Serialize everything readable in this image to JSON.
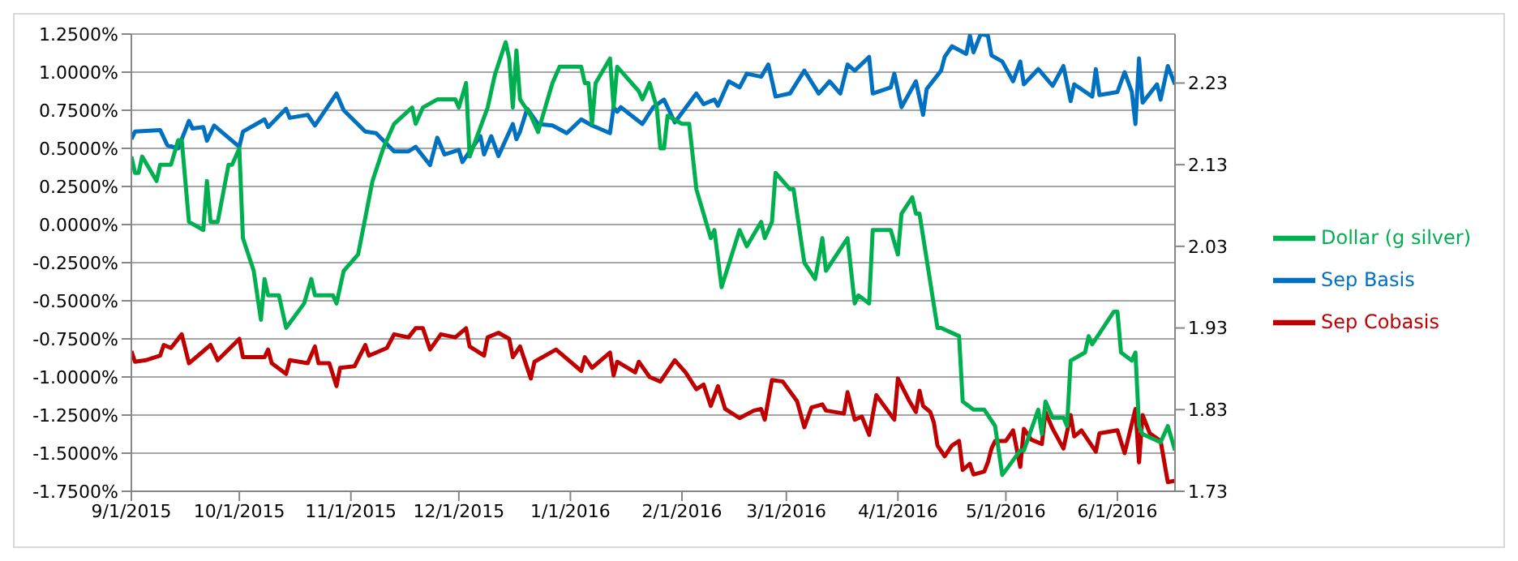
{
  "chart_data": {
    "type": "line",
    "legend": "right",
    "grid": "y",
    "line_style": "solid",
    "marker": "none",
    "xlim": [
      "2015-09-01",
      "2016-06-17"
    ],
    "xticks": [
      {
        "value": "2015-09-01",
        "label": "9/1/2015"
      },
      {
        "value": "2015-10-01",
        "label": "10/1/2015"
      },
      {
        "value": "2015-11-01",
        "label": "11/1/2015"
      },
      {
        "value": "2015-12-01",
        "label": "12/1/2015"
      },
      {
        "value": "2016-01-01",
        "label": "1/1/2016"
      },
      {
        "value": "2016-02-01",
        "label": "2/1/2016"
      },
      {
        "value": "2016-03-01",
        "label": "3/1/2016"
      },
      {
        "value": "2016-04-01",
        "label": "4/1/2016"
      },
      {
        "value": "2016-05-01",
        "label": "5/1/2016"
      },
      {
        "value": "2016-06-01",
        "label": "6/1/2016"
      }
    ],
    "ylim": [
      -1.75,
      1.25
    ],
    "yticks": [
      {
        "value": 1.25,
        "label": "1.2500%"
      },
      {
        "value": 1,
        "label": "1.0000%"
      },
      {
        "value": 0.75,
        "label": "0.7500%"
      },
      {
        "value": 0.5,
        "label": "0.5000%"
      },
      {
        "value": 0.25,
        "label": "0.2500%"
      },
      {
        "value": 0,
        "label": "0.0000%"
      },
      {
        "value": -0.25,
        "label": "-0.2500%"
      },
      {
        "value": -0.5,
        "label": "-0.5000%"
      },
      {
        "value": -0.75,
        "label": "-0.7500%"
      },
      {
        "value": -1,
        "label": "-1.0000%"
      },
      {
        "value": -1.25,
        "label": "-1.2500%"
      },
      {
        "value": -1.5,
        "label": "-1.5000%"
      },
      {
        "value": -1.75,
        "label": "-1.7500%"
      }
    ],
    "y2lim": [
      1.73,
      2.29
    ],
    "y2ticks": [
      1.73,
      1.83,
      1.93,
      2.03,
      2.13,
      2.23
    ],
    "series": [
      {
        "name": "Sep Basis",
        "color": "#0070c0",
        "x": [
          "2015-09-01",
          "2015-09-02",
          "2015-09-09",
          "2015-09-11",
          "2015-09-14",
          "2015-09-17",
          "2015-09-18",
          "2015-09-21",
          "2015-09-22",
          "2015-09-24",
          "2015-10-01",
          "2015-10-02",
          "2015-10-08",
          "2015-10-09",
          "2015-10-14",
          "2015-10-15",
          "2015-10-20",
          "2015-10-22",
          "2015-10-28",
          "2015-10-30",
          "2015-11-05",
          "2015-11-08",
          "2015-11-13",
          "2015-11-17",
          "2015-11-19",
          "2015-11-23",
          "2015-11-25",
          "2015-11-27",
          "2015-12-01",
          "2015-12-02",
          "2015-12-04",
          "2015-12-07",
          "2015-12-08",
          "2015-12-10",
          "2015-12-12",
          "2015-12-16",
          "2015-12-17",
          "2015-12-18",
          "2015-12-20",
          "2015-12-23",
          "2015-12-27",
          "2015-12-31",
          "2016-01-04",
          "2016-01-07",
          "2016-01-12",
          "2016-01-13",
          "2016-01-14",
          "2016-01-15",
          "2016-01-21",
          "2016-01-24",
          "2016-01-27",
          "2016-01-30",
          "2016-02-05",
          "2016-02-07",
          "2016-02-10",
          "2016-02-11",
          "2016-02-14",
          "2016-02-17",
          "2016-02-19",
          "2016-02-23",
          "2016-02-25",
          "2016-02-27",
          "2016-03-02",
          "2016-03-06",
          "2016-03-10",
          "2016-03-13",
          "2016-03-16",
          "2016-03-18",
          "2016-03-20",
          "2016-03-24",
          "2016-03-25",
          "2016-03-30",
          "2016-03-31",
          "2016-04-02",
          "2016-04-06",
          "2016-04-08",
          "2016-04-09",
          "2016-04-13",
          "2016-04-14",
          "2016-04-16",
          "2016-04-20",
          "2016-04-21",
          "2016-04-22",
          "2016-04-24",
          "2016-04-26",
          "2016-04-27",
          "2016-04-30",
          "2016-05-03",
          "2016-05-05",
          "2016-05-06",
          "2016-05-10",
          "2016-05-14",
          "2016-05-17",
          "2016-05-19",
          "2016-05-20",
          "2016-05-25",
          "2016-05-26",
          "2016-05-27",
          "2016-06-01",
          "2016-06-03",
          "2016-06-05",
          "2016-06-06",
          "2016-06-07",
          "2016-06-08",
          "2016-06-12",
          "2016-06-13",
          "2016-06-15",
          "2016-06-17"
        ],
        "values": [
          0.56,
          0.61,
          0.62,
          0.52,
          0.5,
          0.68,
          0.63,
          0.64,
          0.55,
          0.65,
          0.51,
          0.61,
          0.69,
          0.64,
          0.76,
          0.7,
          0.72,
          0.65,
          0.86,
          0.75,
          0.61,
          0.6,
          0.48,
          0.48,
          0.51,
          0.39,
          0.57,
          0.46,
          0.49,
          0.41,
          0.48,
          0.58,
          0.46,
          0.58,
          0.45,
          0.66,
          0.56,
          0.61,
          0.76,
          0.66,
          0.65,
          0.6,
          0.69,
          0.65,
          0.6,
          0.77,
          0.74,
          0.77,
          0.66,
          0.77,
          0.82,
          0.67,
          0.86,
          0.79,
          0.82,
          0.78,
          0.94,
          0.9,
          0.99,
          0.97,
          1.05,
          0.84,
          0.86,
          1.01,
          0.86,
          0.94,
          0.86,
          1.05,
          1.01,
          1.1,
          0.86,
          0.9,
          0.99,
          0.77,
          0.94,
          0.72,
          0.89,
          1.01,
          1.1,
          1.17,
          1.12,
          1.24,
          1.13,
          1.25,
          1.24,
          1.11,
          1.07,
          0.94,
          1.07,
          0.92,
          1.02,
          0.91,
          1.04,
          0.81,
          0.92,
          0.84,
          1.02,
          0.85,
          0.87,
          1.0,
          0.87,
          0.66,
          1.09,
          0.8,
          0.92,
          0.82,
          1.04,
          0.92
        ]
      },
      {
        "name": "Sep Cobasis",
        "color": "#c00000",
        "x": [
          "2015-09-01",
          "2015-09-02",
          "2015-09-05",
          "2015-09-09",
          "2015-09-10",
          "2015-09-12",
          "2015-09-15",
          "2015-09-17",
          "2015-09-23",
          "2015-09-25",
          "2015-10-01",
          "2015-10-02",
          "2015-10-08",
          "2015-10-09",
          "2015-10-10",
          "2015-10-14",
          "2015-10-15",
          "2015-10-20",
          "2015-10-22",
          "2015-10-23",
          "2015-10-26",
          "2015-10-28",
          "2015-10-29",
          "2015-11-02",
          "2015-11-05",
          "2015-11-06",
          "2015-11-11",
          "2015-11-13",
          "2015-11-17",
          "2015-11-19",
          "2015-11-21",
          "2015-11-23",
          "2015-11-26",
          "2015-11-30",
          "2015-12-03",
          "2015-12-04",
          "2015-12-08",
          "2015-12-09",
          "2015-12-12",
          "2015-12-15",
          "2015-12-16",
          "2015-12-18",
          "2015-12-21",
          "2015-12-22",
          "2015-12-28",
          "2016-01-04",
          "2016-01-05",
          "2016-01-07",
          "2016-01-12",
          "2016-01-13",
          "2016-01-14",
          "2016-01-19",
          "2016-01-20",
          "2016-01-23",
          "2016-01-26",
          "2016-01-30",
          "2016-02-02",
          "2016-02-05",
          "2016-02-07",
          "2016-02-09",
          "2016-02-11",
          "2016-02-13",
          "2016-02-17",
          "2016-02-21",
          "2016-02-23",
          "2016-02-24",
          "2016-02-26",
          "2016-02-29",
          "2016-03-04",
          "2016-03-06",
          "2016-03-08",
          "2016-03-11",
          "2016-03-12",
          "2016-03-17",
          "2016-03-18",
          "2016-03-20",
          "2016-03-22",
          "2016-03-24",
          "2016-03-26",
          "2016-03-31",
          "2016-04-01",
          "2016-04-04",
          "2016-04-06",
          "2016-04-07",
          "2016-04-08",
          "2016-04-10",
          "2016-04-11",
          "2016-04-12",
          "2016-04-14",
          "2016-04-16",
          "2016-04-18",
          "2016-04-19",
          "2016-04-21",
          "2016-04-22",
          "2016-04-25",
          "2016-04-26",
          "2016-04-27",
          "2016-04-28",
          "2016-05-01",
          "2016-05-03",
          "2016-05-05",
          "2016-05-06",
          "2016-05-08",
          "2016-05-11",
          "2016-05-12",
          "2016-05-14",
          "2016-05-17",
          "2016-05-19",
          "2016-05-20",
          "2016-05-22",
          "2016-05-26",
          "2016-05-27",
          "2016-06-01",
          "2016-06-03",
          "2016-06-06",
          "2016-06-07",
          "2016-06-08",
          "2016-06-10",
          "2016-06-13",
          "2016-06-15",
          "2016-06-17"
        ],
        "values": [
          -0.83,
          -0.9,
          -0.89,
          -0.86,
          -0.79,
          -0.81,
          -0.72,
          -0.91,
          -0.79,
          -0.89,
          -0.75,
          -0.87,
          -0.87,
          -0.82,
          -0.91,
          -0.98,
          -0.89,
          -0.91,
          -0.8,
          -0.91,
          -0.91,
          -1.06,
          -0.94,
          -0.93,
          -0.79,
          -0.86,
          -0.81,
          -0.72,
          -0.74,
          -0.68,
          -0.68,
          -0.82,
          -0.72,
          -0.74,
          -0.68,
          -0.8,
          -0.86,
          -0.74,
          -0.71,
          -0.75,
          -0.87,
          -0.8,
          -1.01,
          -0.9,
          -0.82,
          -0.96,
          -0.87,
          -0.94,
          -0.84,
          -0.99,
          -0.9,
          -0.97,
          -0.9,
          -1.0,
          -1.03,
          -0.89,
          -0.97,
          -1.08,
          -1.05,
          -1.19,
          -1.06,
          -1.21,
          -1.27,
          -1.22,
          -1.21,
          -1.28,
          -1.02,
          -1.03,
          -1.16,
          -1.33,
          -1.2,
          -1.18,
          -1.22,
          -1.24,
          -1.1,
          -1.28,
          -1.26,
          -1.38,
          -1.12,
          -1.28,
          -1.01,
          -1.15,
          -1.23,
          -1.09,
          -1.19,
          -1.23,
          -1.3,
          -1.45,
          -1.52,
          -1.45,
          -1.42,
          -1.61,
          -1.57,
          -1.64,
          -1.62,
          -1.56,
          -1.47,
          -1.42,
          -1.42,
          -1.35,
          -1.59,
          -1.34,
          -1.41,
          -1.44,
          -1.23,
          -1.34,
          -1.47,
          -1.25,
          -1.39,
          -1.35,
          -1.49,
          -1.37,
          -1.35,
          -1.5,
          -1.21,
          -1.56,
          -1.25,
          -1.37,
          -1.42,
          -1.69,
          -1.68
        ]
      },
      {
        "name": "Dollar (g silver)",
        "color": "#00b050",
        "axis": "y2",
        "x": [
          "2015-09-01",
          "2015-09-02",
          "2015-09-03",
          "2015-09-04",
          "2015-09-08",
          "2015-09-09",
          "2015-09-12",
          "2015-09-14",
          "2015-09-15",
          "2015-09-17",
          "2015-09-21",
          "2015-09-22",
          "2015-09-23",
          "2015-09-25",
          "2015-09-28",
          "2015-09-29",
          "2015-10-01",
          "2015-10-02",
          "2015-10-05",
          "2015-10-07",
          "2015-10-08",
          "2015-10-09",
          "2015-10-12",
          "2015-10-14",
          "2015-10-19",
          "2015-10-21",
          "2015-10-22",
          "2015-10-27",
          "2015-10-28",
          "2015-10-30",
          "2015-11-03",
          "2015-11-07",
          "2015-11-10",
          "2015-11-13",
          "2015-11-18",
          "2015-11-19",
          "2015-11-21",
          "2015-11-25",
          "2015-11-30",
          "2015-12-01",
          "2015-12-03",
          "2015-12-04",
          "2015-12-09",
          "2015-12-11",
          "2015-12-14",
          "2015-12-15",
          "2015-12-16",
          "2015-12-17",
          "2015-12-18",
          "2015-12-21",
          "2015-12-23",
          "2015-12-27",
          "2015-12-29",
          "2015-12-31",
          "2016-01-04",
          "2016-01-05",
          "2016-01-06",
          "2016-01-07",
          "2016-01-08",
          "2016-01-12",
          "2016-01-13",
          "2016-01-14",
          "2016-01-16",
          "2016-01-20",
          "2016-01-21",
          "2016-01-23",
          "2016-01-25",
          "2016-01-26",
          "2016-01-27",
          "2016-01-28",
          "2016-02-01",
          "2016-02-03",
          "2016-02-05",
          "2016-02-09",
          "2016-02-10",
          "2016-02-12",
          "2016-02-17",
          "2016-02-19",
          "2016-02-23",
          "2016-02-24",
          "2016-02-26",
          "2016-02-27",
          "2016-03-02",
          "2016-03-03",
          "2016-03-06",
          "2016-03-09",
          "2016-03-11",
          "2016-03-12",
          "2016-03-18",
          "2016-03-20",
          "2016-03-21",
          "2016-03-24",
          "2016-03-25",
          "2016-03-30",
          "2016-04-01",
          "2016-04-02",
          "2016-04-05",
          "2016-04-06",
          "2016-04-07",
          "2016-04-12",
          "2016-04-13",
          "2016-04-18",
          "2016-04-19",
          "2016-04-22",
          "2016-04-25",
          "2016-04-28",
          "2016-04-30",
          "2016-05-05",
          "2016-05-06",
          "2016-05-10",
          "2016-05-11",
          "2016-05-12",
          "2016-05-14",
          "2016-05-17",
          "2016-05-18",
          "2016-05-19",
          "2016-05-23",
          "2016-05-24",
          "2016-05-25",
          "2016-05-31",
          "2016-06-01",
          "2016-06-02",
          "2016-06-05",
          "2016-06-06",
          "2016-06-07",
          "2016-06-08",
          "2016-06-13",
          "2016-06-15",
          "2016-06-17"
        ],
        "values": [
          2.14,
          2.12,
          2.12,
          2.14,
          2.11,
          2.13,
          2.13,
          2.16,
          2.16,
          2.06,
          2.05,
          2.11,
          2.06,
          2.06,
          2.13,
          2.13,
          2.15,
          2.04,
          2.0,
          1.94,
          1.99,
          1.97,
          1.97,
          1.93,
          1.96,
          1.99,
          1.97,
          1.97,
          1.96,
          2.0,
          2.02,
          2.11,
          2.15,
          2.18,
          2.2,
          2.18,
          2.2,
          2.21,
          2.21,
          2.2,
          2.23,
          2.14,
          2.2,
          2.24,
          2.28,
          2.26,
          2.2,
          2.27,
          2.21,
          2.19,
          2.17,
          2.23,
          2.25,
          2.25,
          2.25,
          2.23,
          2.23,
          2.18,
          2.23,
          2.26,
          2.2,
          2.25,
          2.24,
          2.22,
          2.21,
          2.23,
          2.2,
          2.15,
          2.15,
          2.19,
          2.18,
          2.18,
          2.1,
          2.04,
          2.05,
          1.98,
          2.05,
          2.03,
          2.06,
          2.04,
          2.06,
          2.12,
          2.1,
          2.1,
          2.01,
          1.99,
          2.04,
          2.0,
          2.04,
          1.96,
          1.97,
          1.96,
          2.05,
          2.05,
          2.02,
          2.07,
          2.09,
          2.07,
          2.07,
          1.93,
          1.93,
          1.92,
          1.84,
          1.83,
          1.83,
          1.81,
          1.75,
          1.78,
          1.78,
          1.83,
          1.8,
          1.84,
          1.82,
          1.82,
          1.81,
          1.89,
          1.9,
          1.92,
          1.91,
          1.95,
          1.95,
          1.9,
          1.89,
          1.9,
          1.81,
          1.8,
          1.79,
          1.81,
          1.78
        ]
      }
    ]
  }
}
